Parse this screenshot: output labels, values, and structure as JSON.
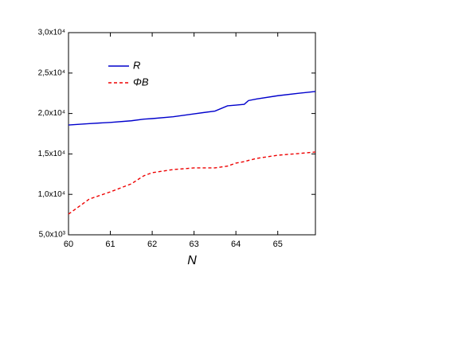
{
  "chart_data": {
    "type": "line",
    "x_label": "N",
    "x": [
      60,
      60.5,
      61,
      61.5,
      61.8,
      62,
      62.5,
      63,
      63.5,
      63.8,
      64,
      64.2,
      64.3,
      64.5,
      65,
      65.5,
      65.9
    ],
    "series": [
      {
        "name": "R",
        "color": "#0000cc",
        "dash": false,
        "values": [
          18580,
          18750,
          18900,
          19100,
          19300,
          19370,
          19600,
          19960,
          20300,
          20950,
          21040,
          21140,
          21600,
          21800,
          22200,
          22500,
          22720
        ]
      },
      {
        "name": "ΦB",
        "color": "#ee0000",
        "dash": true,
        "values": [
          7560,
          9430,
          10310,
          11300,
          12300,
          12680,
          13070,
          13270,
          13270,
          13500,
          13860,
          14050,
          14200,
          14450,
          14840,
          15050,
          15240
        ]
      }
    ],
    "xlim": [
      60,
      65.9
    ],
    "xticks": [
      60,
      61,
      62,
      63,
      64,
      65
    ],
    "ylim": [
      5000,
      30000
    ],
    "yticks": [
      {
        "value": 5000,
        "label": "5,0x10³"
      },
      {
        "value": 10000,
        "label": "1,0x10⁴"
      },
      {
        "value": 15000,
        "label": "1,5x10⁴"
      },
      {
        "value": 20000,
        "label": "2,0x10⁴"
      },
      {
        "value": 25000,
        "label": "2,5x10⁴"
      },
      {
        "value": 30000,
        "label": "3,0x10⁴"
      }
    ],
    "legend": "upper-left",
    "grid": false
  }
}
